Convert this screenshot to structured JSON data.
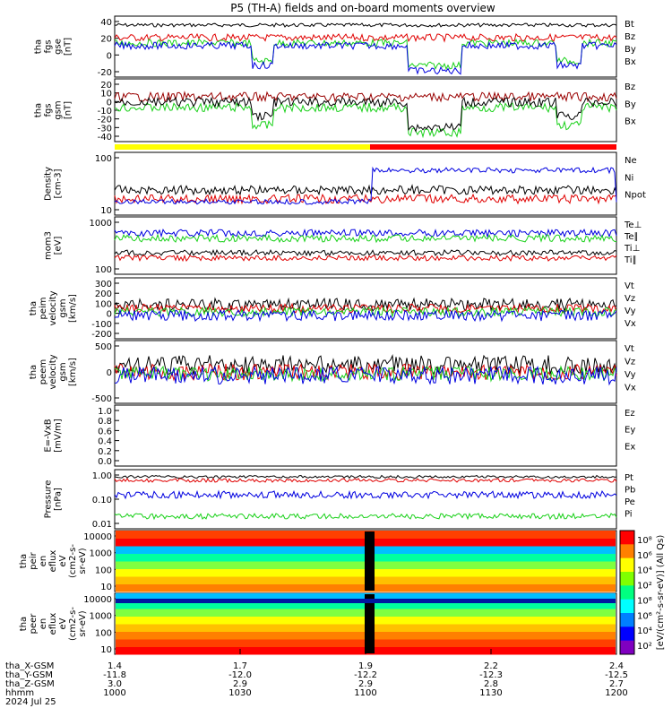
{
  "title": "P5 (TH-A) fields and on-board moments overview",
  "colors": {
    "black": "#000000",
    "red": "#e00000",
    "green": "#18d018",
    "blue": "#0000e0",
    "darkred": "#9a0000",
    "yellow": "#ffff00",
    "bar_red": "#ff0000"
  },
  "time_ticks": [
    "1000",
    "1030",
    "1100",
    "1130",
    "1200"
  ],
  "ephemeris": {
    "row_labels": [
      "tha_X-GSM",
      "tha_Y-GSM",
      "tha_Z-GSM",
      "hhmm",
      "2024 Jul 25"
    ],
    "columns": [
      [
        "1.4",
        "-11.8",
        "3.0",
        "1000"
      ],
      [
        "1.7",
        "-12.0",
        "2.9",
        "1030"
      ],
      [
        "1.9",
        "-12.2",
        "2.9",
        "1100"
      ],
      [
        "2.2",
        "-12.3",
        "2.8",
        "1130"
      ],
      [
        "2.4",
        "-12.5",
        "2.7",
        "1200"
      ]
    ]
  },
  "panels": [
    {
      "key": "fgs_gse",
      "ylabel": [
        "tha",
        "fgs",
        "gse",
        "[nT]"
      ],
      "ticks": [
        "40",
        "20",
        "0",
        "-20"
      ],
      "legend": [
        [
          "Bt",
          "black"
        ],
        [
          "Bz",
          "red"
        ],
        [
          "By",
          "green"
        ],
        [
          "Bx",
          "blue"
        ]
      ]
    },
    {
      "key": "fgs_gsm",
      "ylabel": [
        "tha",
        "fgs",
        "gsm",
        "[nT]"
      ],
      "ticks": [
        "20",
        "10",
        "0",
        "-10",
        "-20",
        "-30",
        "-40"
      ],
      "legend": [
        [
          "Bz",
          "darkred"
        ],
        [
          "By",
          "green"
        ],
        [
          "Bx",
          "black"
        ]
      ]
    },
    {
      "key": "density",
      "ylabel": [
        "Density",
        "[cm-3]"
      ],
      "ticks": [
        "100",
        "10"
      ],
      "legend": [
        [
          "Ne",
          "red"
        ],
        [
          "Ni",
          "black"
        ],
        [
          "Npot",
          "blue"
        ]
      ]
    },
    {
      "key": "temp",
      "ylabel": [
        "mom3",
        "[eV]"
      ],
      "ticks": [
        "1000",
        "100"
      ],
      "legend": [
        [
          "Te⊥",
          "red"
        ],
        [
          "Te∥",
          "black"
        ],
        [
          "Ti⊥",
          "blue"
        ],
        [
          "Ti∥",
          "green"
        ]
      ]
    },
    {
      "key": "peim",
      "ylabel": [
        "tha",
        "peim",
        "velocity",
        "gsm",
        "[km/s]"
      ],
      "ticks": [
        "300",
        "200",
        "100",
        "0",
        "-100",
        "-200"
      ],
      "legend": [
        [
          "Vt",
          "black"
        ],
        [
          "Vz",
          "red"
        ],
        [
          "Vy",
          "green"
        ],
        [
          "Vx",
          "blue"
        ]
      ]
    },
    {
      "key": "peem",
      "ylabel": [
        "tha",
        "peem",
        "velocity",
        "gsm",
        "[km/s]"
      ],
      "ticks": [
        "500",
        "0",
        "-500"
      ],
      "legend": [
        [
          "Vt",
          "black"
        ],
        [
          "Vz",
          "red"
        ],
        [
          "Vy",
          "green"
        ],
        [
          "Vx",
          "blue"
        ]
      ]
    },
    {
      "key": "efield",
      "ylabel": [
        "E=-VxB",
        "[mV/m]"
      ],
      "ticks": [
        "1.0",
        "0.8",
        "0.6",
        "0.4",
        "0.2",
        "0.0"
      ],
      "legend": [
        [
          "Ez",
          "red"
        ],
        [
          "Ey",
          "green"
        ],
        [
          "Ex",
          "blue"
        ]
      ]
    },
    {
      "key": "pressure",
      "ylabel": [
        "Pressure",
        "[nPa]"
      ],
      "ticks": [
        "1.00",
        "0.10",
        "0.01"
      ],
      "legend": [
        [
          "Pt",
          "black"
        ],
        [
          "Pb",
          "red"
        ],
        [
          "Pe",
          "green"
        ],
        [
          "Pi",
          "blue"
        ]
      ]
    },
    {
      "key": "peir",
      "ylabel": [
        "tha",
        "peir",
        "en",
        "eflux",
        "eV",
        "(cm2-s-",
        "sr-eV)"
      ],
      "ticks": [
        "10000",
        "1000",
        "100",
        "10"
      ],
      "legend": []
    },
    {
      "key": "peer",
      "ylabel": [
        "tha",
        "peer",
        "en",
        "eflux",
        "eV",
        "(cm2-s-",
        "sr-eV)"
      ],
      "ticks": [
        "10000",
        "1000",
        "100",
        "10"
      ],
      "legend": []
    }
  ],
  "colorbar": {
    "ticks": [
      "10⁸",
      "10⁶",
      "10⁴",
      "10²",
      "10⁸",
      "10⁶",
      "10⁴",
      "10²"
    ],
    "label": "[eV/(cm²-s-sr-eV)] (All Qs)"
  },
  "chart_data": {
    "type": "line",
    "title": "P5 (TH-A) fields and on-board moments overview",
    "xlabel": "hhmm",
    "x_range": [
      "1000",
      "1200"
    ],
    "x_ticks": [
      "1000",
      "1030",
      "1100",
      "1130",
      "1200"
    ],
    "date": "2024 Jul 25",
    "series": [
      {
        "name": "Bt (gse)",
        "ylim": [
          -20,
          50
        ],
        "values": [
          40,
          38,
          37,
          40,
          45,
          44,
          42,
          38,
          45,
          46,
          44,
          42,
          44
        ]
      },
      {
        "name": "Bz (gse)",
        "ylim": [
          -20,
          50
        ],
        "values": [
          22,
          25,
          28,
          30,
          30,
          32,
          28,
          24,
          20,
          32,
          30,
          28,
          30
        ]
      },
      {
        "name": "By (gse)",
        "ylim": [
          -20,
          50
        ],
        "values": [
          20,
          18,
          22,
          -5,
          25,
          22,
          20,
          -10,
          -12,
          22,
          20,
          -5,
          22
        ]
      },
      {
        "name": "Bx (gse)",
        "ylim": [
          -20,
          50
        ],
        "values": [
          18,
          20,
          15,
          -8,
          20,
          18,
          15,
          -15,
          -15,
          18,
          15,
          -10,
          18
        ]
      },
      {
        "name": "Ne",
        "scale": "log",
        "ylim": [
          1,
          100
        ],
        "values": [
          3,
          4,
          6,
          5,
          4,
          3,
          2,
          6,
          7,
          6,
          5,
          6,
          7
        ]
      },
      {
        "name": "Ni",
        "scale": "log",
        "ylim": [
          1,
          100
        ],
        "values": [
          4,
          6,
          12,
          10,
          8,
          6,
          3,
          12,
          15,
          12,
          10,
          10,
          12
        ]
      },
      {
        "name": "Npot",
        "scale": "log",
        "ylim": [
          1,
          100
        ],
        "values": [
          4,
          5,
          5,
          5,
          4,
          3,
          2,
          40,
          60,
          50,
          30,
          40,
          50
        ]
      },
      {
        "name": "Vt (peim)",
        "ylim": [
          -250,
          320
        ],
        "values": [
          50,
          80,
          200,
          250,
          150,
          80,
          60,
          250,
          200,
          250,
          220,
          250,
          200
        ]
      },
      {
        "name": "Pt",
        "scale": "log",
        "ylim": [
          0.01,
          1
        ],
        "values": [
          0.8,
          0.85,
          0.9,
          0.85,
          0.8,
          0.8,
          0.7,
          0.85,
          0.9,
          0.85,
          0.85,
          0.85,
          0.9
        ]
      },
      {
        "name": "Pb",
        "scale": "log",
        "ylim": [
          0.01,
          1
        ],
        "values": [
          0.6,
          0.65,
          0.7,
          0.65,
          0.6,
          0.6,
          0.55,
          0.7,
          0.75,
          0.7,
          0.7,
          0.7,
          0.75
        ]
      },
      {
        "name": "Pi",
        "scale": "log",
        "ylim": [
          0.01,
          1
        ],
        "values": [
          0.15,
          0.12,
          0.1,
          0.1,
          0.12,
          0.1,
          0.08,
          0.1,
          0.12,
          0.1,
          0.1,
          0.1,
          0.12
        ]
      },
      {
        "name": "Pe",
        "scale": "log",
        "ylim": [
          0.01,
          1
        ],
        "values": [
          0.03,
          0.02,
          0.02,
          0.02,
          0.03,
          0.02,
          0.02,
          0.02,
          0.03,
          0.02,
          0.02,
          0.02,
          0.03
        ]
      }
    ]
  }
}
